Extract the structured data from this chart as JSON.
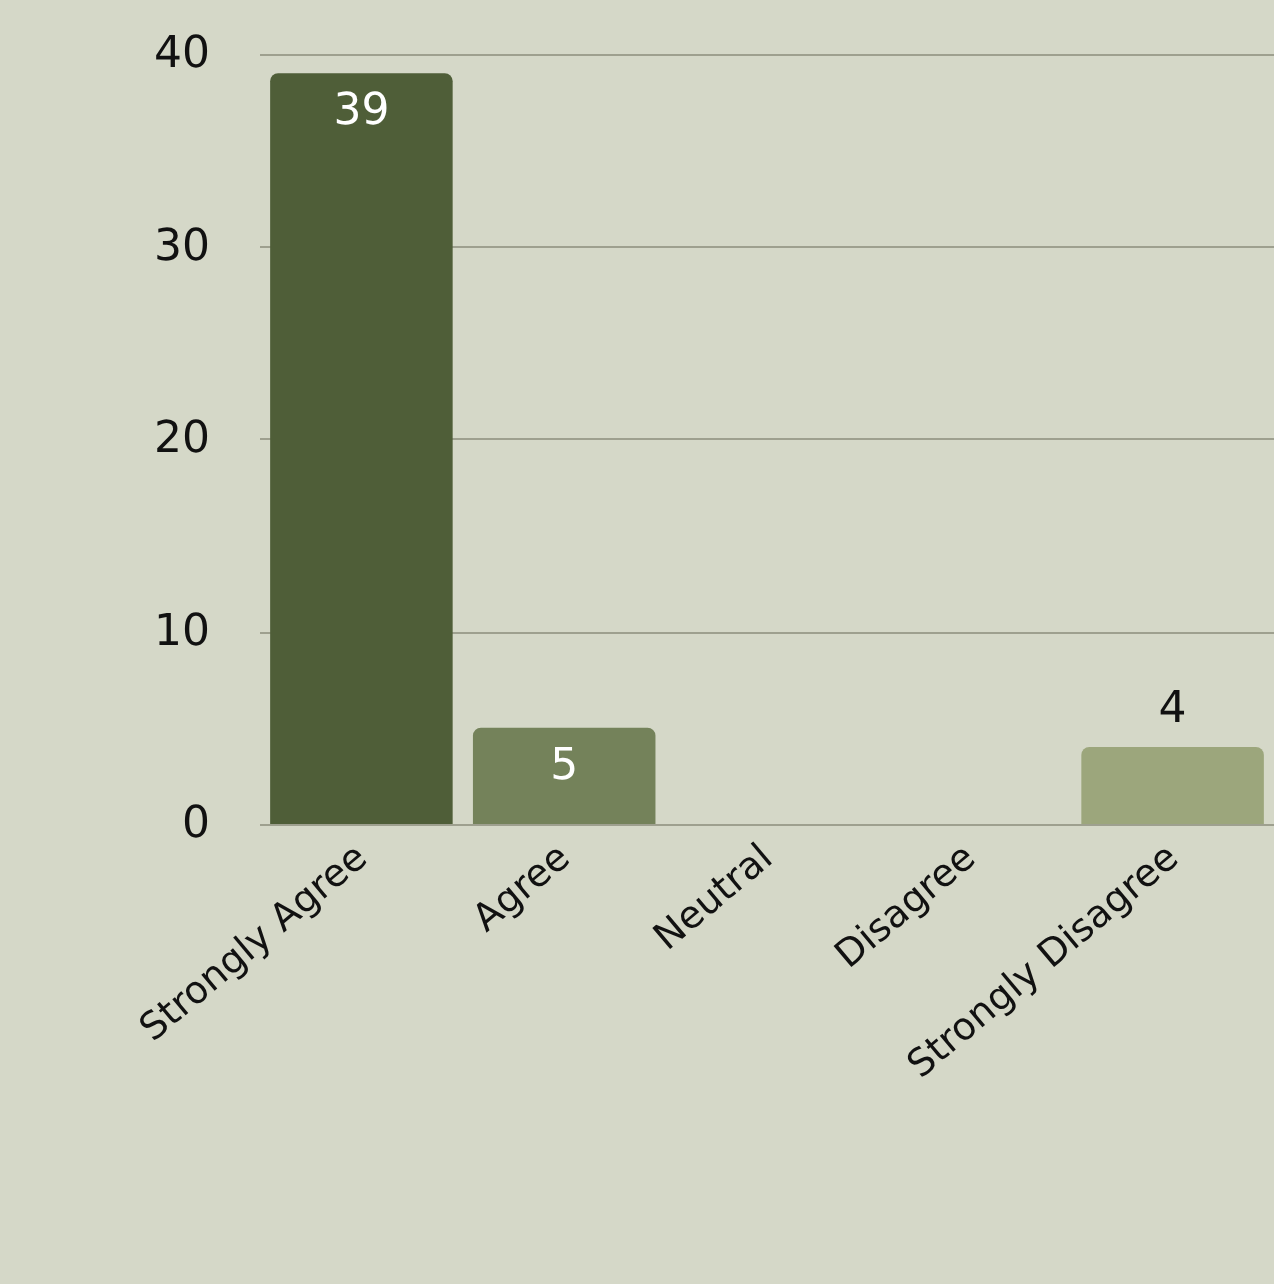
{
  "chart_data": {
    "type": "bar",
    "categories": [
      "Strongly Agree",
      "Agree",
      "Neutral",
      "Disagree",
      "Strongly Disagree"
    ],
    "values": [
      39,
      5,
      0,
      0,
      4
    ],
    "colors": [
      "#4f5e38",
      "#74825a",
      "#8a9468",
      "#8a9468",
      "#9ca67c"
    ],
    "value_labels": [
      "39",
      "5",
      null,
      null,
      "4"
    ],
    "ylim": [
      0,
      40
    ],
    "yticks": [
      0,
      10,
      20,
      30,
      40
    ],
    "grid": "y"
  }
}
